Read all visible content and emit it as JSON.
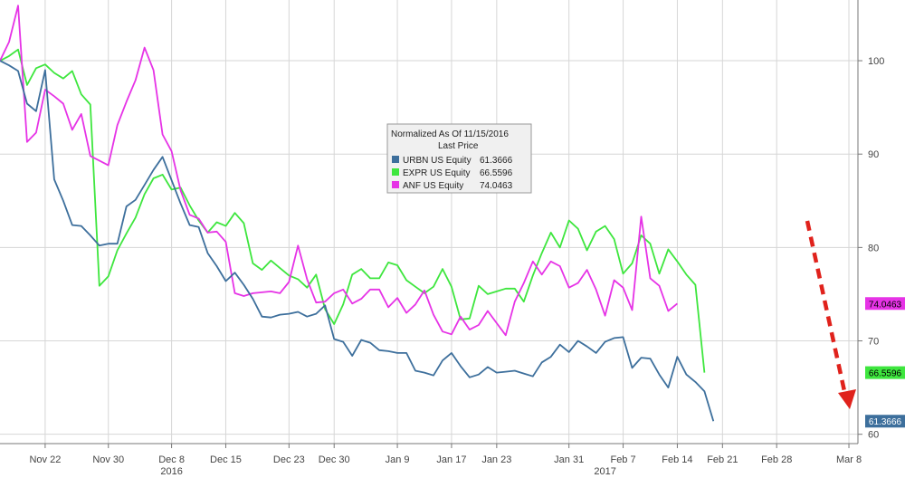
{
  "chart_data": {
    "type": "line",
    "title": "",
    "xlabel": "",
    "ylabel": "",
    "x_tick_labels": [
      "Nov 22",
      "Nov 30",
      "Dec 8",
      "Dec 15",
      "Dec 23",
      "Dec 30",
      "Jan 9",
      "Jan 17",
      "Jan 23",
      "Jan 31",
      "Feb 7",
      "Feb 14",
      "Feb 21",
      "Feb 28",
      "Mar 8"
    ],
    "x_tick_index": [
      5,
      12,
      19,
      25,
      32,
      37,
      44,
      50,
      55,
      63,
      69,
      75,
      80,
      86,
      94
    ],
    "year_labels": [
      "2016",
      "2017"
    ],
    "year_label_index": [
      19,
      67
    ],
    "y_ticks": [
      60,
      70,
      80,
      90,
      100
    ],
    "ylim": [
      59,
      106.5
    ],
    "grid": true,
    "legend": {
      "title": "Normalized As Of 11/15/2016",
      "subtitle": "Last Price",
      "position": "top-center"
    },
    "series": [
      {
        "name": "URBN US Equity",
        "last": "61.3666",
        "color": "#3d6f9c",
        "tag_text": "#ffffff",
        "values": [
          100.0,
          99.5,
          98.9,
          95.4,
          94.6,
          99.0,
          87.3,
          85.0,
          82.4,
          82.3,
          81.3,
          80.2,
          80.4,
          80.4,
          84.4,
          85.1,
          86.7,
          88.3,
          89.7,
          87.2,
          84.7,
          82.4,
          82.2,
          79.4,
          78.0,
          76.4,
          77.3,
          76.0,
          74.5,
          72.6,
          72.5,
          72.8,
          72.9,
          73.1,
          72.6,
          72.9,
          73.8,
          70.2,
          69.9,
          68.4,
          70.1,
          69.8,
          69.0,
          68.9,
          68.7,
          68.7,
          66.8,
          66.6,
          66.3,
          67.9,
          68.7,
          67.3,
          66.1,
          66.4,
          67.2,
          66.6,
          66.7,
          66.8,
          66.5,
          66.2,
          67.7,
          68.3,
          69.6,
          68.8,
          70.0,
          69.4,
          68.7,
          69.9,
          70.3,
          70.4,
          67.1,
          68.2,
          68.1,
          66.4,
          65.0,
          68.3,
          66.4,
          65.6,
          64.6,
          61.4
        ]
      },
      {
        "name": "EXPR US Equity",
        "last": "66.5596",
        "color": "#3ee63e",
        "tag_text": "#000000",
        "values": [
          100.0,
          100.5,
          101.2,
          97.4,
          99.2,
          99.6,
          98.7,
          98.1,
          98.9,
          96.4,
          95.3,
          75.9,
          76.9,
          79.7,
          81.5,
          83.2,
          85.7,
          87.4,
          87.8,
          86.2,
          86.4,
          84.5,
          82.9,
          81.6,
          82.7,
          82.3,
          83.7,
          82.6,
          78.3,
          77.6,
          78.6,
          77.8,
          77.0,
          76.6,
          75.7,
          77.1,
          73.4,
          71.8,
          73.9,
          77.1,
          77.7,
          76.7,
          76.7,
          78.4,
          78.1,
          76.5,
          75.8,
          75.1,
          75.8,
          77.7,
          75.8,
          72.3,
          72.4,
          75.9,
          75.0,
          75.3,
          75.6,
          75.6,
          74.2,
          77.0,
          79.4,
          81.6,
          80.0,
          82.9,
          82.0,
          79.7,
          81.7,
          82.3,
          80.9,
          77.2,
          78.3,
          81.3,
          80.4,
          77.2,
          79.8,
          78.5,
          77.1,
          76.0,
          66.6
        ]
      },
      {
        "name": "ANF US Equity",
        "last": "74.0463",
        "color": "#e633e6",
        "tag_text": "#000000",
        "values": [
          100.0,
          102.0,
          105.9,
          91.3,
          92.3,
          96.9,
          96.2,
          95.4,
          92.6,
          94.3,
          89.8,
          89.3,
          88.8,
          93.1,
          95.6,
          97.9,
          101.4,
          99.0,
          92.1,
          90.3,
          86.1,
          83.5,
          83.1,
          81.6,
          81.7,
          80.6,
          75.1,
          74.8,
          75.1,
          75.2,
          75.3,
          75.1,
          76.3,
          80.2,
          76.6,
          74.1,
          74.2,
          75.1,
          75.5,
          74.0,
          74.5,
          75.5,
          75.5,
          73.6,
          74.6,
          73.0,
          73.9,
          75.4,
          72.8,
          71.0,
          70.7,
          72.6,
          71.2,
          71.7,
          73.2,
          71.9,
          70.6,
          74.2,
          76.2,
          78.5,
          77.1,
          78.5,
          78.0,
          75.7,
          76.2,
          77.6,
          75.5,
          72.7,
          76.5,
          75.7,
          73.3,
          83.3,
          76.7,
          75.9,
          73.2,
          74.0
        ]
      }
    ]
  }
}
